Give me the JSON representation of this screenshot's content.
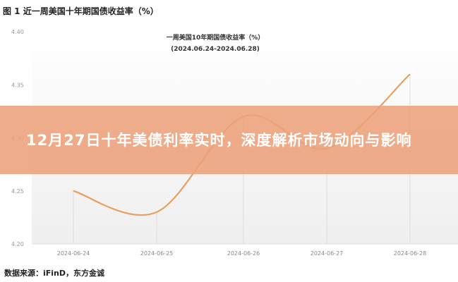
{
  "figure_label": "图 1  近一周美国十年期国债收益率（%）",
  "source": "数据来源：iFinD，东方金诚",
  "banner": "12月27日十年美债利率实时，深度解析市场动向与影响",
  "chart_data": {
    "type": "line",
    "title": "一周美国10年期国债收益率（%）",
    "subtitle": "(2024.06.24-2024.06.28)",
    "categories": [
      "2024-06-24",
      "2024-06-25",
      "2024-06-26",
      "2024-06-27",
      "2024-06-28"
    ],
    "values": [
      4.25,
      4.23,
      4.32,
      4.29,
      4.36
    ],
    "yticks": [
      "4.20",
      "4.25",
      "4.30",
      "4.35",
      "4.40"
    ],
    "ylim": [
      4.2,
      4.4
    ],
    "smooth": true,
    "grid": "vertical",
    "line_color": "#e8a060"
  }
}
